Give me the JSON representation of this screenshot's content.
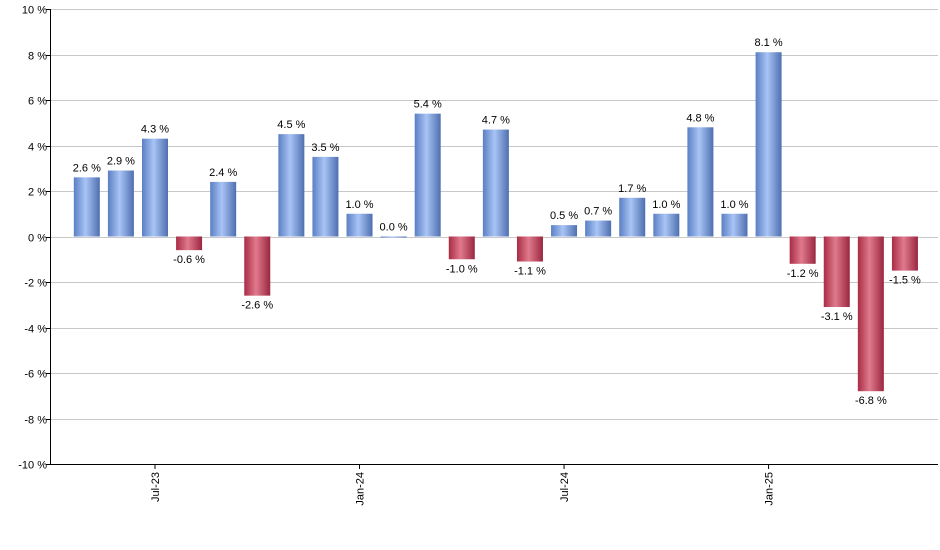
{
  "chart_data": {
    "type": "bar",
    "title": "",
    "xlabel": "",
    "ylabel": "",
    "ylim": [
      -10,
      10
    ],
    "yticks": [
      10,
      8,
      6,
      4,
      2,
      0,
      -2,
      -4,
      -6,
      -8,
      -10
    ],
    "ytick_labels": [
      "10 %",
      "8 %",
      "6 %",
      "4 %",
      "2 %",
      "0 %",
      "-2 %",
      "-4 %",
      "-6 %",
      "-8 %",
      "-10 %"
    ],
    "grid": true,
    "x_tick_labels": [
      {
        "bar_index": 2,
        "label": "Jul-23"
      },
      {
        "bar_index": 8,
        "label": "Jan-24"
      },
      {
        "bar_index": 14,
        "label": "Jul-24"
      },
      {
        "bar_index": 20,
        "label": "Jan-25"
      }
    ],
    "values": [
      2.6,
      2.9,
      4.3,
      -0.6,
      2.4,
      -2.6,
      4.5,
      3.5,
      1.0,
      0.0,
      5.4,
      -1.0,
      4.7,
      -1.1,
      0.5,
      0.7,
      1.7,
      1.0,
      4.8,
      1.0,
      8.1,
      -1.2,
      -3.1,
      -6.8,
      -1.5
    ],
    "data_labels": [
      "2.6 %",
      "2.9 %",
      "4.3 %",
      "-0.6 %",
      "2.4 %",
      "-2.6 %",
      "4.5 %",
      "3.5 %",
      "1.0 %",
      "0.0 %",
      "5.4 %",
      "-1.0 %",
      "4.7 %",
      "-1.1 %",
      "0.5 %",
      "0.7 %",
      "1.7 %",
      "1.0 %",
      "4.8 %",
      "1.0 %",
      "8.1 %",
      "-1.2 %",
      "-3.1 %",
      "-6.8 %",
      "-1.5 %"
    ],
    "colors": {
      "positive": "#8fb0e8",
      "negative": "#c23c54",
      "grid": "#c8c8c8",
      "axis": "#000000"
    }
  }
}
